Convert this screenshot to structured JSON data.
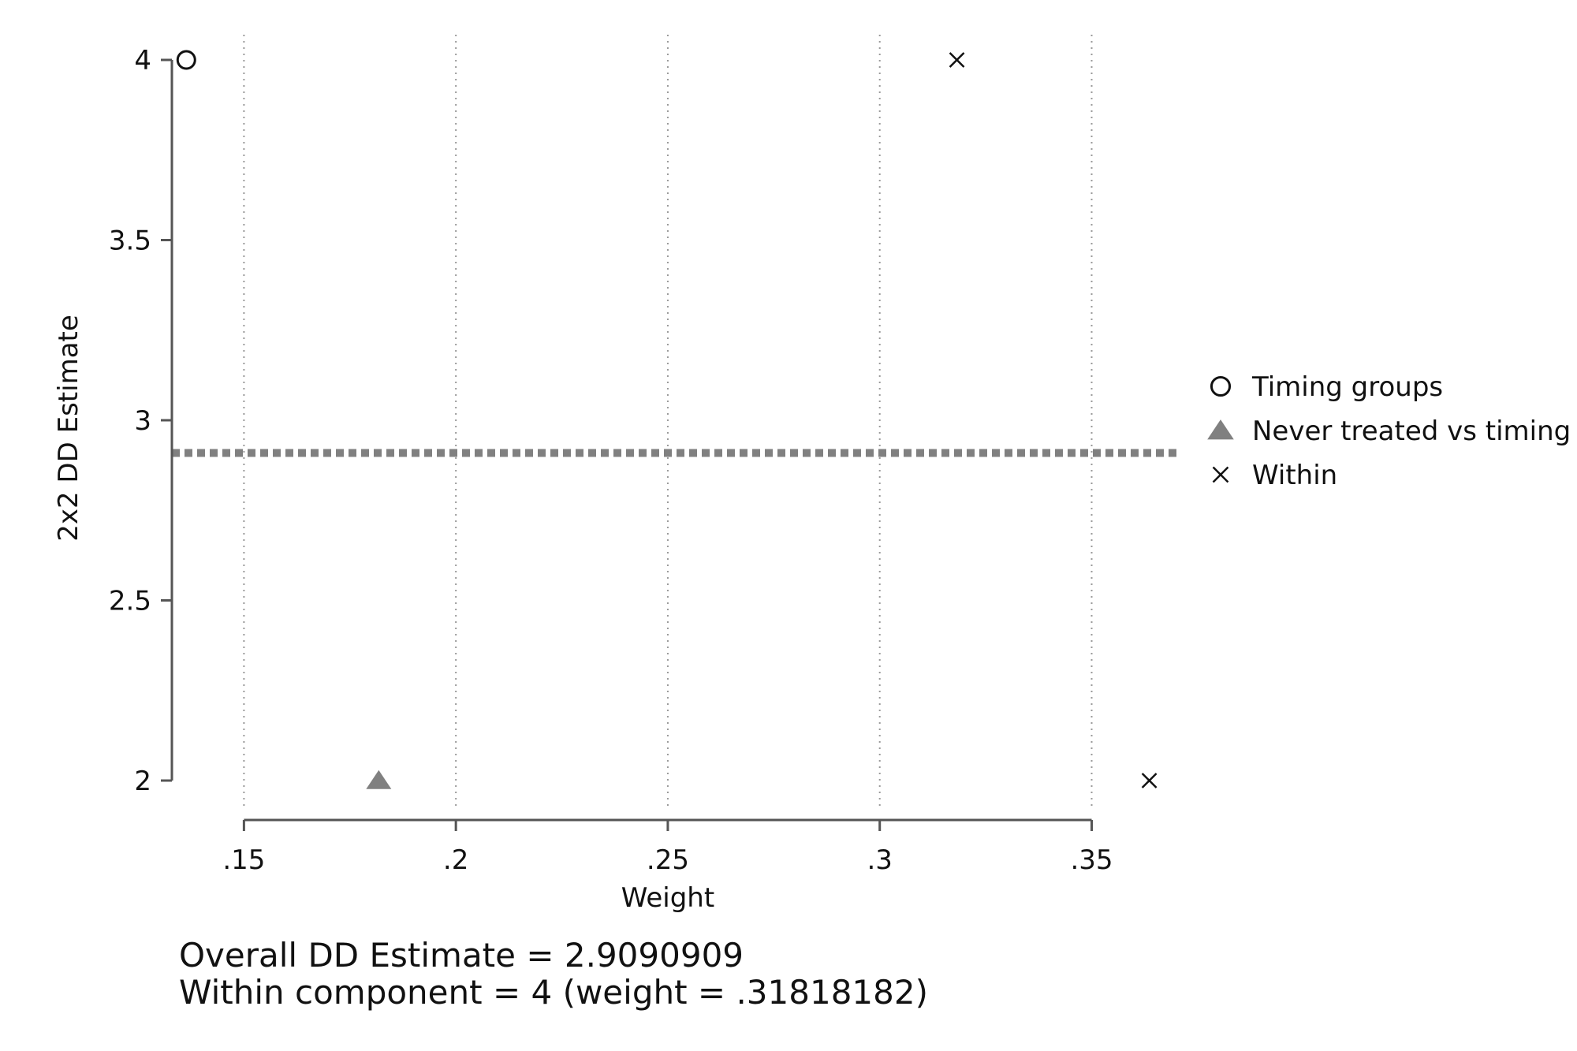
{
  "chart_data": {
    "type": "scatter",
    "xlabel": "Weight",
    "ylabel": "2x2 DD Estimate",
    "xlim": [
      0.133,
      0.37
    ],
    "ylim": [
      1.93,
      4.07
    ],
    "xticks": [
      0.15,
      0.2,
      0.25,
      0.3,
      0.35
    ],
    "xtick_labels": [
      ".15",
      ".2",
      ".25",
      ".3",
      ".35"
    ],
    "yticks": [
      2,
      2.5,
      3,
      3.5,
      4
    ],
    "ytick_labels": [
      "2",
      "2.5",
      "3",
      "3.5",
      "4"
    ],
    "grid": "vertical dotted",
    "legend_position": "right",
    "reference_line": {
      "y": 2.9090909,
      "style": "dashed"
    },
    "series": [
      {
        "name": "Timing groups",
        "marker": "circle",
        "color": "#111111",
        "points": [
          [
            0.1364,
            4
          ]
        ]
      },
      {
        "name": "Never treated vs timing",
        "marker": "triangle",
        "color": "#808080",
        "points": [
          [
            0.1818,
            2
          ]
        ]
      },
      {
        "name": "Within",
        "marker": "x",
        "color": "#111111",
        "points": [
          [
            0.3182,
            4
          ],
          [
            0.3636,
            2
          ]
        ]
      }
    ]
  },
  "notes": {
    "line1": "Overall DD Estimate = 2.9090909",
    "line2": "Within component = 4 (weight = .31818182)"
  }
}
